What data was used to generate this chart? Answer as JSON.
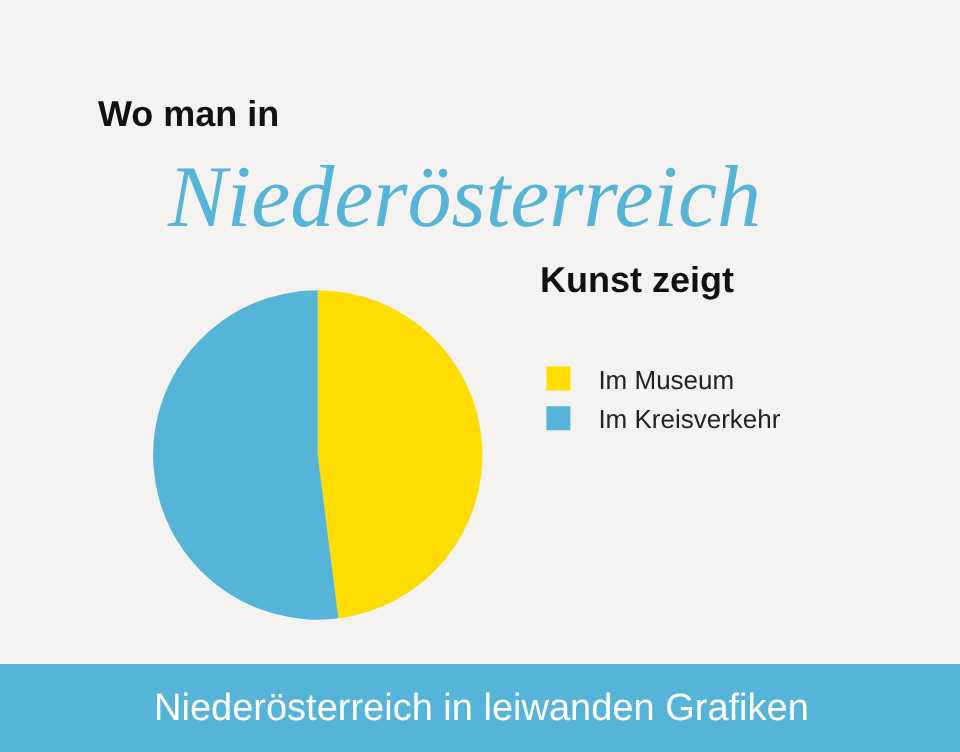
{
  "chart_data": {
    "type": "pie",
    "title": "Wo man in Niederösterreich Kunst zeigt",
    "categories": [
      "Im Museum",
      "Im Kreisverkehr"
    ],
    "values": [
      48,
      52
    ],
    "colors": [
      "#ffdd00",
      "#56b4d9"
    ],
    "legend": "right",
    "annotations": [
      "Niederösterreich in leiwanden Grafiken"
    ]
  }
}
